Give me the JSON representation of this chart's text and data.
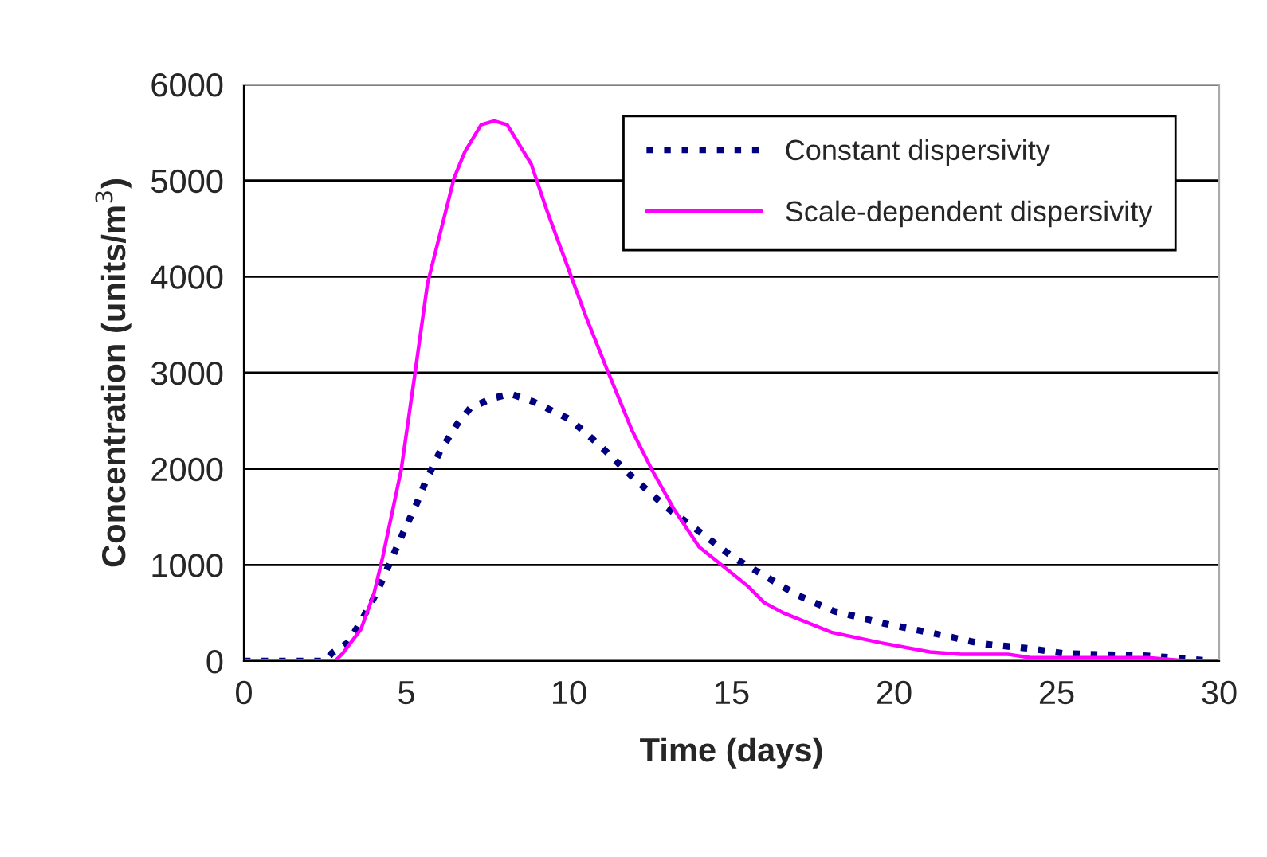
{
  "chart_data": {
    "type": "line",
    "xlabel": "Time (days)",
    "ylabel": "Concentration (units/m$^{3}$)",
    "xlim": [
      0,
      30
    ],
    "xticks": [
      0,
      5,
      10,
      15,
      20,
      25,
      30
    ],
    "ylim": [
      0,
      6000
    ],
    "yticks": [
      0,
      1000,
      2000,
      3000,
      4000,
      5000,
      6000
    ],
    "grid": "y",
    "legend": "top right",
    "marker": "none",
    "series": [
      {
        "name": "Constant dispersivity",
        "color": "#000080",
        "line_style": "dotted",
        "x": [
          0,
          2.5,
          2.7,
          3.2,
          3.6,
          4.1,
          4.5,
          4.92,
          5.33,
          5.57,
          6.03,
          6.55,
          6.96,
          7.6,
          8.2,
          8.9,
          10.0,
          10.5,
          11.05,
          12.0,
          13.0,
          14.0,
          15.05,
          16.1,
          17.0,
          18.15,
          19.7,
          21.2,
          22.7,
          24.2,
          25.2,
          27.8,
          28.8,
          29.8
        ],
        "values": [
          0,
          0,
          80,
          190,
          410,
          720,
          1030,
          1350,
          1650,
          1850,
          2180,
          2460,
          2630,
          2730,
          2780,
          2700,
          2520,
          2380,
          2210,
          1900,
          1600,
          1350,
          1080,
          870,
          690,
          520,
          390,
          290,
          180,
          130,
          80,
          55,
          30,
          0
        ]
      },
      {
        "name": "Scale-dependent dispersivity",
        "color": "#ff00ff",
        "line_style": "solid",
        "x": [
          0,
          2.8,
          3.04,
          3.6,
          4.0,
          4.27,
          4.84,
          5.25,
          5.65,
          6.0,
          6.47,
          6.8,
          7.3,
          7.7,
          8.1,
          8.84,
          9.33,
          10.06,
          10.55,
          11.2,
          11.94,
          12.6,
          13.25,
          14.0,
          15.5,
          16.0,
          16.6,
          18.07,
          19.6,
          21.1,
          22.06,
          23.5,
          24.2,
          27.8,
          29.1,
          30
        ],
        "values": [
          0,
          0,
          80,
          330,
          700,
          1080,
          1990,
          2960,
          3930,
          4400,
          5030,
          5300,
          5580,
          5620,
          5580,
          5170,
          4680,
          4010,
          3560,
          3010,
          2400,
          1960,
          1570,
          1190,
          780,
          610,
          500,
          300,
          190,
          95,
          70,
          70,
          35,
          35,
          0,
          0
        ]
      }
    ]
  }
}
